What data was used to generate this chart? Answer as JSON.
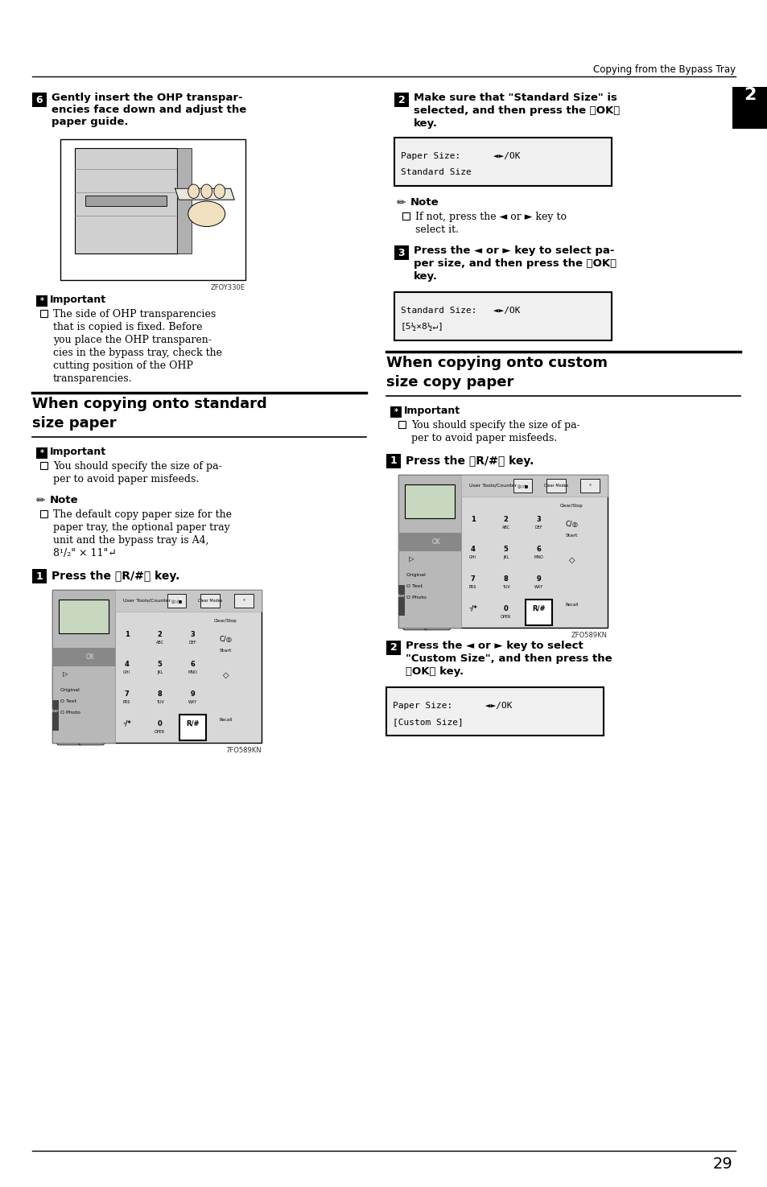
{
  "bg_color": "#ffffff",
  "header_text": "Copying from the Bypass Tray",
  "page_number": "29",
  "chapter_number": "2",
  "sections": {
    "step6_text": "Gently insert the OHP transpar-\nencies face down and adjust the\npaper guide.",
    "img1_caption": "ZFOY330E",
    "important1_title": "Important",
    "important1_text_lines": [
      "The side of OHP transparencies",
      "that is copied is fixed. Before",
      "you place the OHP transparen-",
      "cies in the bypass tray, check the",
      "cutting position of the OHP",
      "transparencies."
    ],
    "section1_title1": "When copying onto standard",
    "section1_title2": "size paper",
    "important2_title": "Important",
    "important2_text_lines": [
      "You should specify the size of pa-",
      "per to avoid paper misfeeds."
    ],
    "note1_title": "Note",
    "note1_text_lines": [
      "The default copy paper size for the",
      "paper tray, the optional paper tray",
      "unit and the bypass tray is A4,",
      "8¹/₂\" × 11\"↵"
    ],
    "step1a_text": "Press the 《R/#》 key.",
    "img1a_caption": "7FO589KN",
    "step2_text_lines": [
      "Make sure that \"Standard Size\" is",
      "selected, and then press the 《OK》",
      "key."
    ],
    "display1_line1": "Paper Size:      ◄►/OK",
    "display1_line2": "Standard Size",
    "note2_title": "Note",
    "note2_text_lines": [
      "If not, press the ◄ or ► key to",
      "select it."
    ],
    "step3_text_lines": [
      "Press the ◄ or ► key to select pa-",
      "per size, and then press the 《OK》",
      "key."
    ],
    "display2_line1": "Standard Size:   ◄►/OK",
    "display2_line2": "[5½×8½↵]",
    "section2_title1": "When copying onto custom",
    "section2_title2": "size copy paper",
    "important3_title": "Important",
    "important3_text_lines": [
      "You should specify the size of pa-",
      "per to avoid paper misfeeds."
    ],
    "step1b_text": "Press the 《R/#》 key.",
    "img2_caption": "ZFO589KN",
    "step4_text_lines": [
      "Press the ◄ or ► key to select",
      "\"Custom Size\", and then press the",
      "《OK》 key."
    ],
    "display3_line1": "Paper Size:      ◄►/OK",
    "display3_line2": "[Custom Size]"
  }
}
